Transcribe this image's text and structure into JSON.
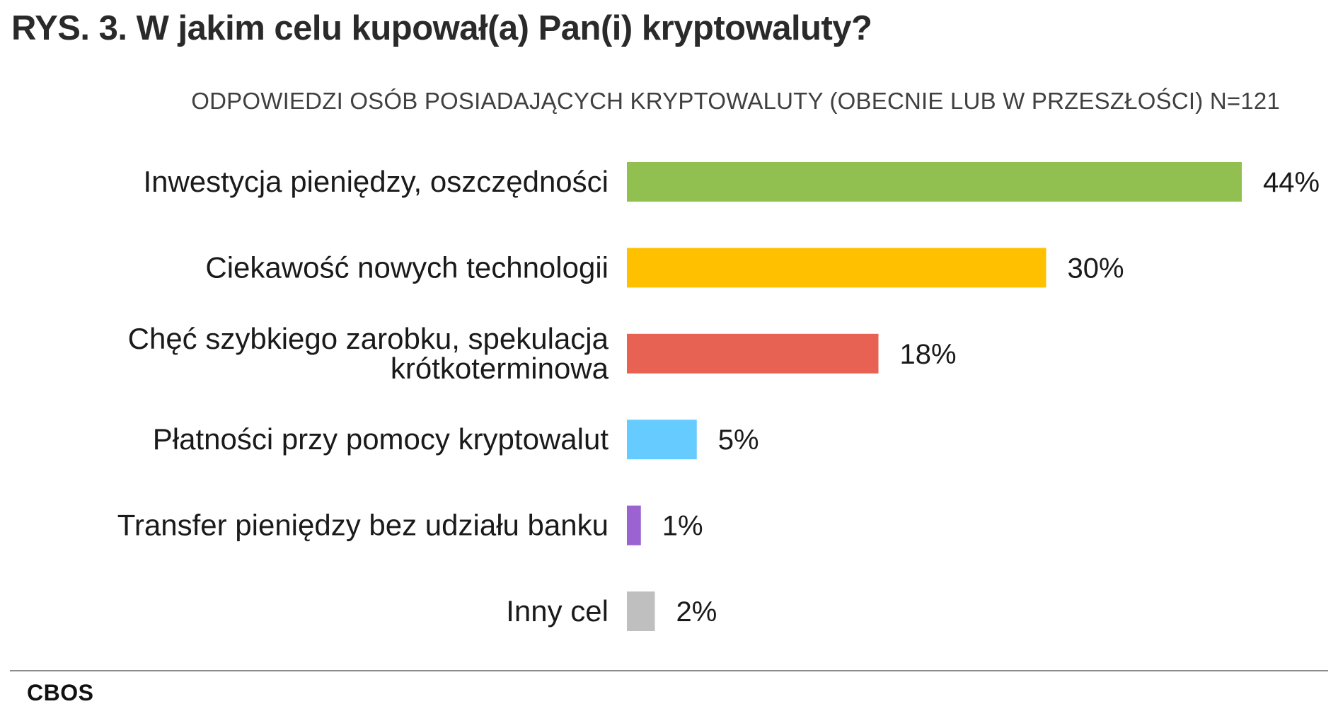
{
  "header": {
    "title": "RYS. 3. W jakim celu kupował(a) Pan(i) kryptowaluty?",
    "subtitle": "ODPOWIEDZI OSÓB POSIADAJĄCYCH KRYPTOWALUTY (OBECNIE LUB W PRZESZŁOŚCI) N=121"
  },
  "chart_data": {
    "type": "bar",
    "orientation": "horizontal",
    "title": "RYS. 3. W jakim celu kupował(a) Pan(i) kryptowaluty?",
    "subtitle": "ODPOWIEDZI OSÓB POSIADAJĄCYCH KRYPTOWALUTY (OBECNIE LUB W PRZESZŁOŚCI) N=121",
    "xlabel": "",
    "ylabel": "",
    "xlim": [
      0,
      44
    ],
    "unit": "%",
    "grid": false,
    "legend": "none",
    "categories": [
      [
        "Inwestycja pieniędzy, oszczędności"
      ],
      [
        "Ciekawość nowych technologii"
      ],
      [
        "Chęć szybkiego zarobku, spekulacja",
        "krótkoterminowa"
      ],
      [
        "Płatności przy pomocy kryptowalut"
      ],
      [
        "Transfer pieniędzy bez udziału banku"
      ],
      [
        "Inny cel"
      ]
    ],
    "values": [
      44,
      30,
      18,
      5,
      1,
      2
    ],
    "value_labels": [
      "44%",
      "30%",
      "18%",
      "5%",
      "1%",
      "2%"
    ],
    "colors": [
      "#92c050",
      "#ffc000",
      "#e86253",
      "#66ccff",
      "#9b63d1",
      "#bfbfbf"
    ]
  },
  "footer": {
    "source": "CBOS"
  }
}
